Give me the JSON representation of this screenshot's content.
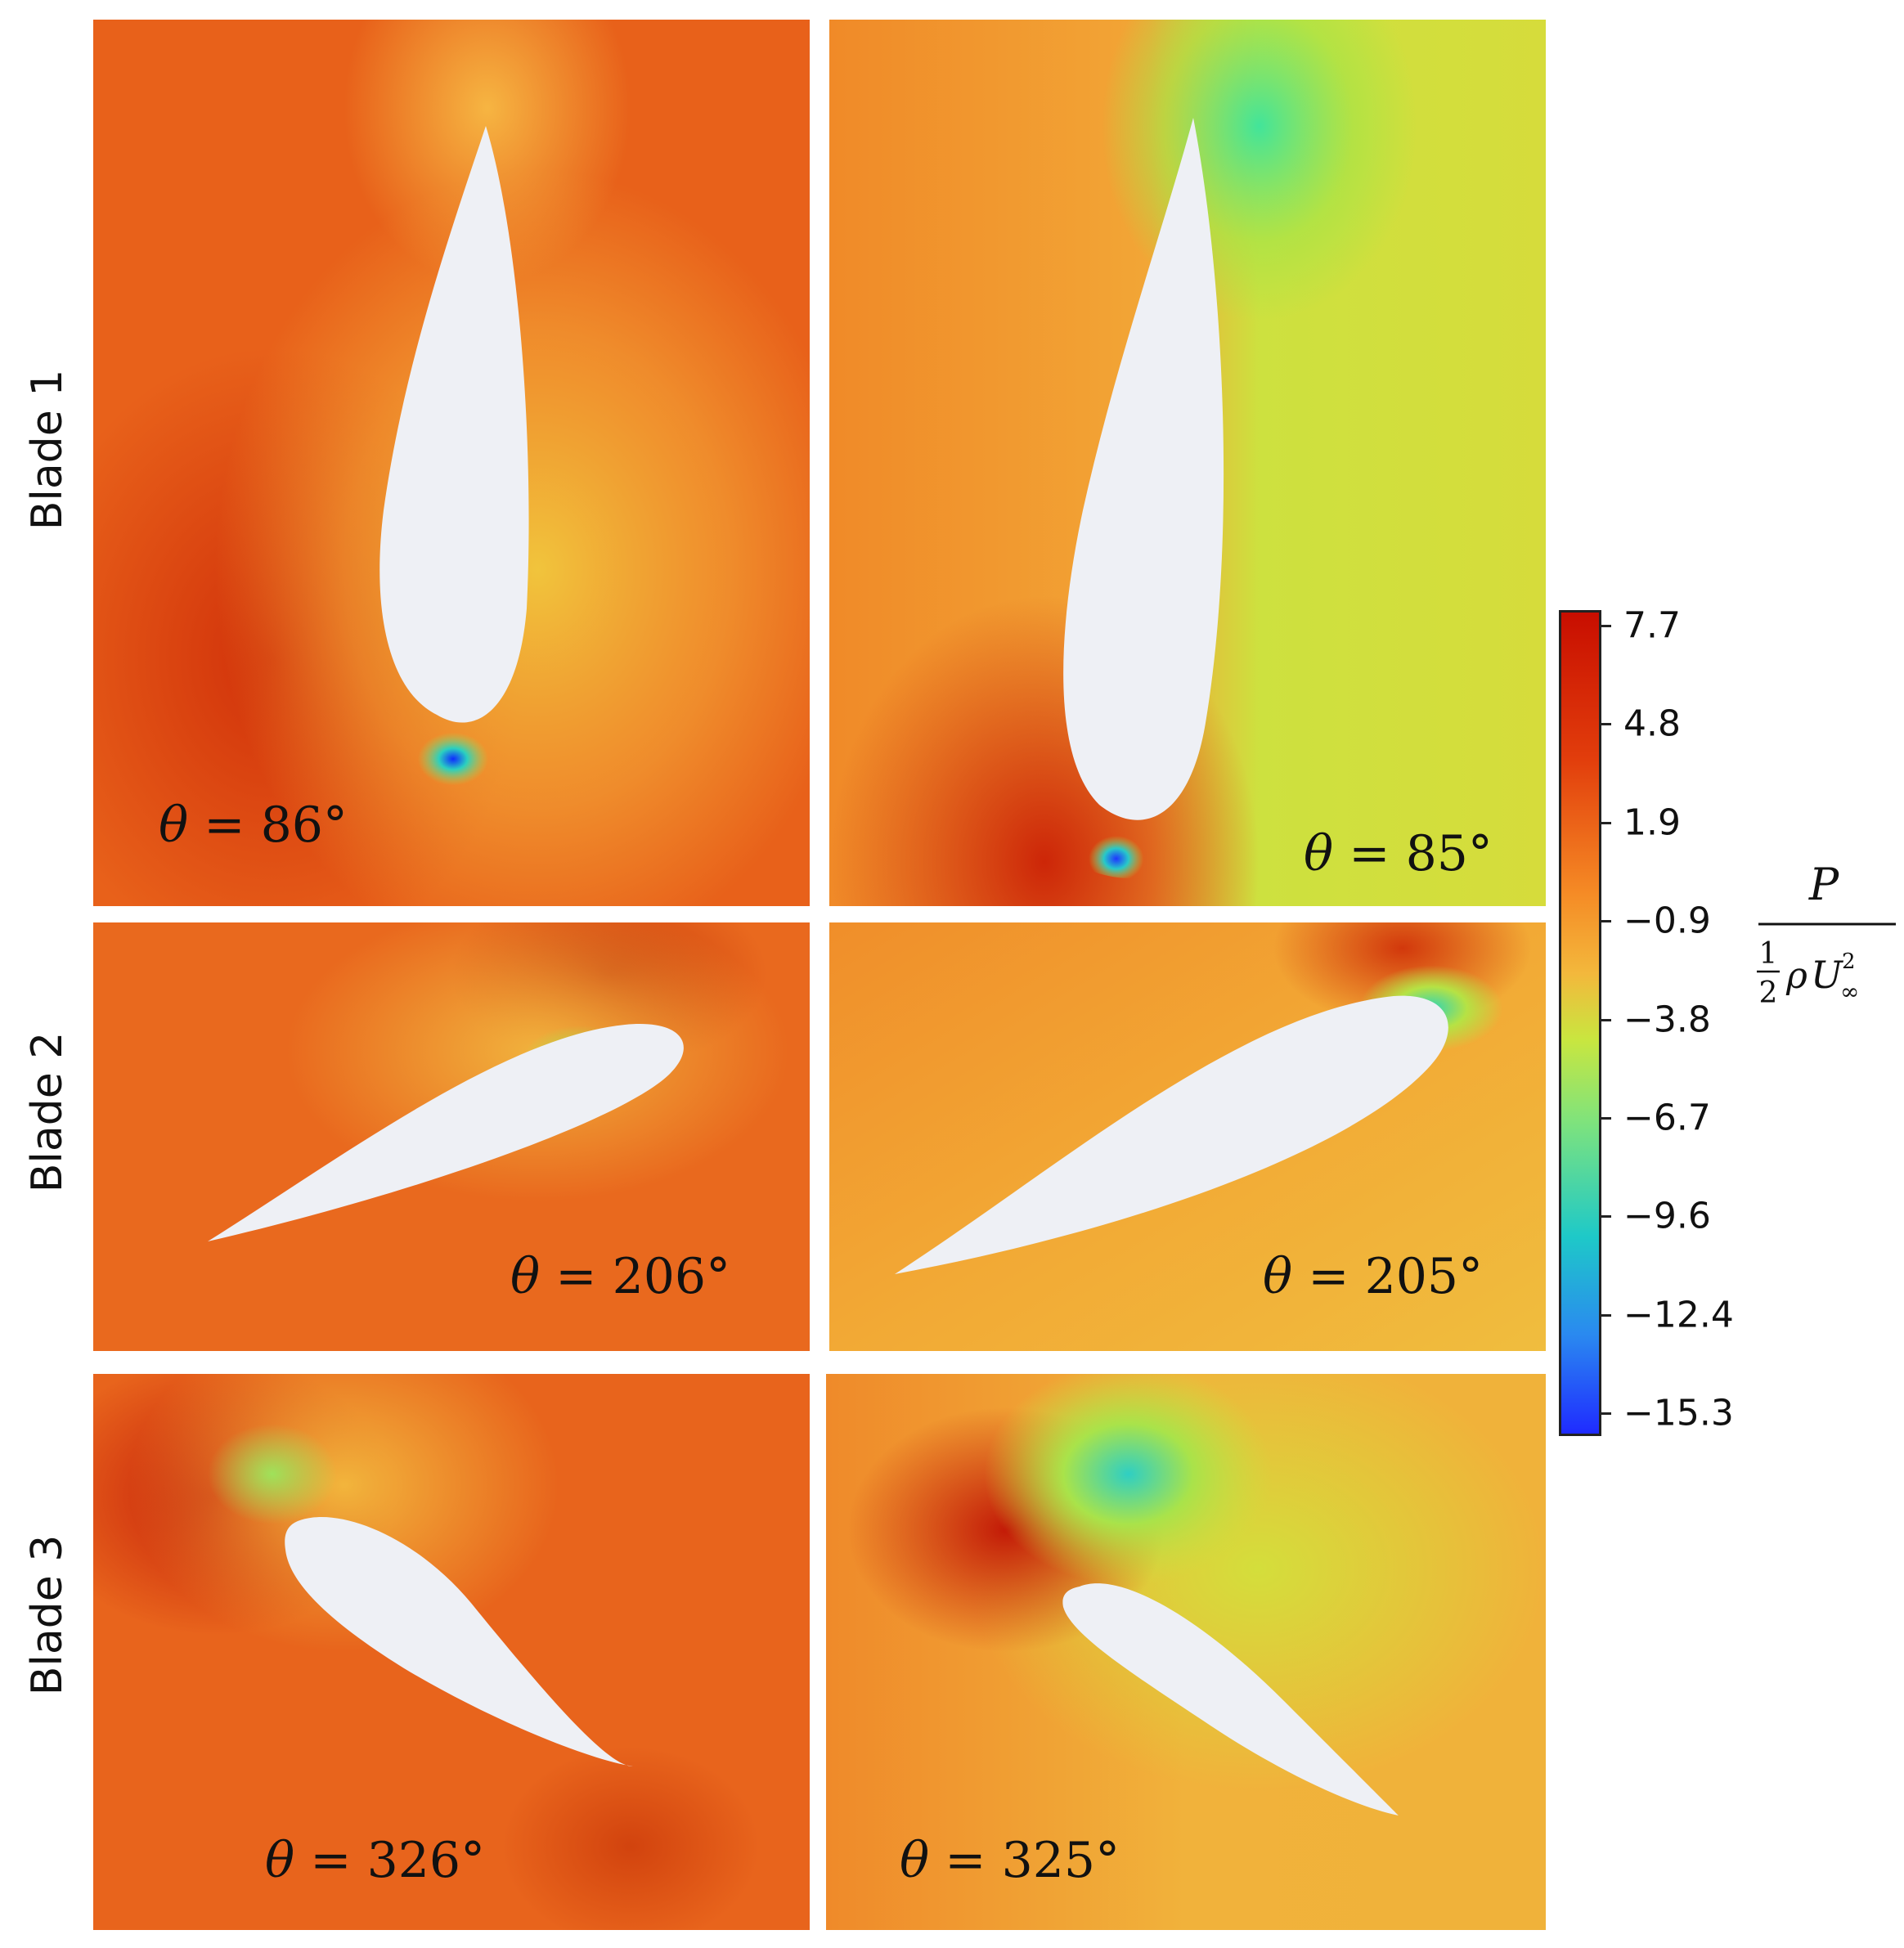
{
  "rows": [
    {
      "label": "Blade 1"
    },
    {
      "label": "Blade 2"
    },
    {
      "label": "Blade 3"
    }
  ],
  "panels": [
    {
      "id": "b1-left",
      "angle": "86°"
    },
    {
      "id": "b1-right",
      "angle": "85°"
    },
    {
      "id": "b2-left",
      "angle": "206°"
    },
    {
      "id": "b2-right",
      "angle": "205°"
    },
    {
      "id": "b3-left",
      "angle": "326°"
    },
    {
      "id": "b3-right",
      "angle": "325°"
    }
  ],
  "angle_symbol": "θ",
  "equals": "=",
  "colorbar": {
    "ticks": [
      "7.7",
      "4.8",
      "1.9",
      "−0.9",
      "−3.8",
      "−6.7",
      "−9.6",
      "−12.4",
      "−15.3"
    ],
    "max": 7.7,
    "min": -15.3,
    "colors": [
      "#c80e00",
      "#e23e0c",
      "#f58a25",
      "#f3b83c",
      "#c9e63f",
      "#7fe37c",
      "#1ec9c8",
      "#2a89f0",
      "#1f2bff"
    ],
    "label_numerator": "P",
    "label_frac_num": "1",
    "label_frac_den": "2",
    "label_rho": "ρ",
    "label_U": "U",
    "label_sup": "2",
    "label_sub": "∞"
  }
}
